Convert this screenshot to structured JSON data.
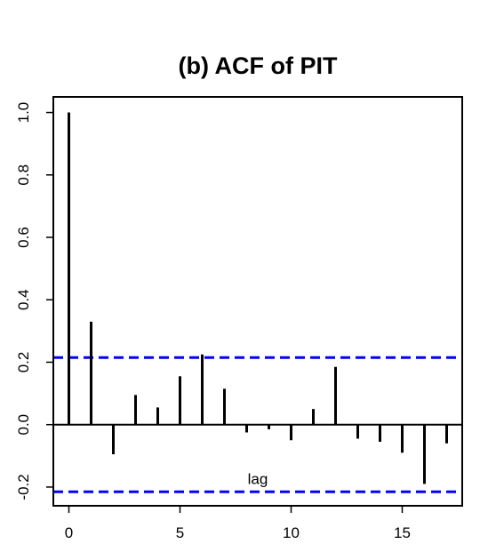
{
  "chart_data": {
    "type": "bar",
    "title": "(b) ACF of PIT",
    "xlabel": "",
    "ylabel": "",
    "xlim": [
      -0.7,
      17.7
    ],
    "ylim": [
      -0.26,
      1.05
    ],
    "lags": [
      0,
      1,
      2,
      3,
      4,
      5,
      6,
      7,
      8,
      9,
      10,
      11,
      12,
      13,
      14,
      15,
      16,
      17
    ],
    "values": [
      1.0,
      0.33,
      -0.095,
      0.095,
      0.055,
      0.155,
      0.225,
      0.115,
      -0.025,
      -0.015,
      -0.05,
      0.05,
      0.185,
      -0.045,
      -0.055,
      -0.09,
      -0.19,
      -0.06
    ],
    "confidence_band": 0.215,
    "confidence_band_color": "#0000ff",
    "x_ticks": [
      0,
      5,
      10,
      15
    ],
    "y_ticks": [
      -0.2,
      0.0,
      0.2,
      0.4,
      0.6,
      0.8,
      1.0
    ],
    "x_tick_labels": [
      "0",
      "5",
      "10",
      "15"
    ],
    "y_tick_labels": [
      "-0.2",
      "0.0",
      "0.2",
      "0.4",
      "0.6",
      "0.8",
      "1.0"
    ],
    "annotation": "lag",
    "annotation_position": {
      "x": 8.5,
      "y": -0.19
    },
    "grid": false,
    "legend": "none"
  }
}
